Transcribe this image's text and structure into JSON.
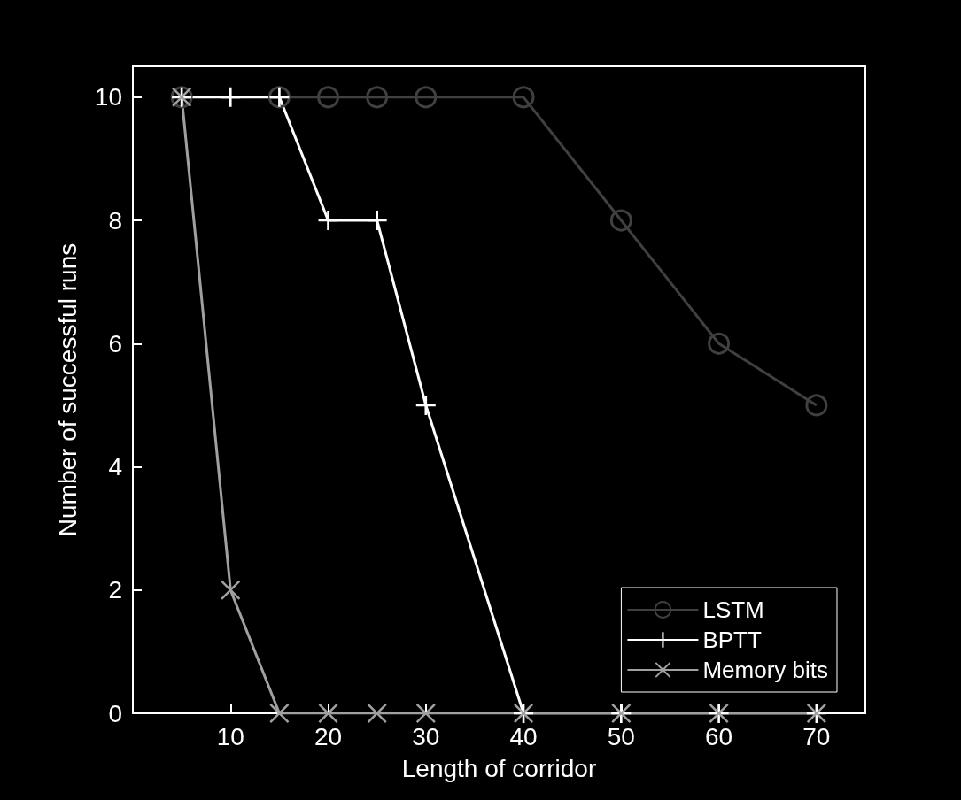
{
  "chart_data": {
    "type": "line",
    "xlabel": "Length of corridor",
    "ylabel": "Number of successful runs",
    "x": [
      5,
      10,
      15,
      20,
      25,
      30,
      40,
      50,
      60,
      70
    ],
    "xlim": [
      0,
      75
    ],
    "xticks": [
      10,
      20,
      30,
      40,
      50,
      60,
      70
    ],
    "ylim": [
      0,
      10.5
    ],
    "yticks": [
      0,
      2,
      4,
      6,
      8,
      10
    ],
    "grid": false,
    "legend": "bottom right",
    "series": [
      {
        "name": "LSTM",
        "color": "#404040",
        "marker": "circle",
        "values": [
          10,
          null,
          10,
          10,
          10,
          10,
          10,
          8,
          6,
          5
        ]
      },
      {
        "name": "BPTT",
        "color": "#ffffff",
        "marker": "plus",
        "values": [
          10,
          10,
          10,
          8,
          8,
          5,
          0,
          0,
          0,
          0
        ]
      },
      {
        "name": "Memory bits",
        "color": "#a0a0a0",
        "marker": "cross",
        "values": [
          10,
          2,
          0,
          0,
          0,
          0,
          0,
          0,
          0,
          0
        ]
      }
    ]
  }
}
